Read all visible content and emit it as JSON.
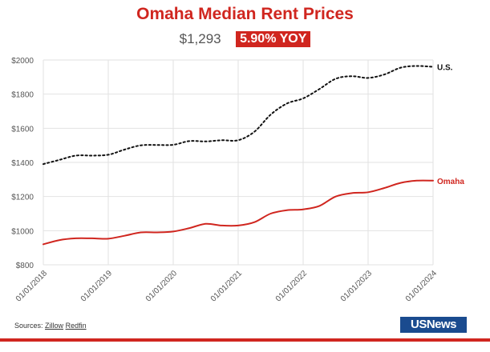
{
  "header": {
    "title": "Omaha Median Rent Prices",
    "current_value": "$1,293",
    "yoy_change": "5.90% YOY"
  },
  "footer": {
    "sources_label": "Sources:",
    "sources": [
      "Zillow",
      "Redfin"
    ],
    "logo_text": "USNews"
  },
  "colors": {
    "accent": "#d0261f",
    "us_line": "#111111",
    "omaha_line": "#d0261f",
    "grid": "#e2e2e2",
    "axis_text": "#555555",
    "logo_bg": "#1a4b8f"
  },
  "chart_data": {
    "type": "line",
    "title": "Omaha Median Rent Prices",
    "xlabel": "",
    "ylabel": "",
    "ylim": [
      800,
      2000
    ],
    "y_ticks": [
      800,
      1000,
      1200,
      1400,
      1600,
      1800,
      2000
    ],
    "y_tick_labels": [
      "$800",
      "$1000",
      "$1200",
      "$1400",
      "$1600",
      "$1800",
      "$2000"
    ],
    "x_range": [
      2018.0,
      2024.0
    ],
    "x_ticks": [
      2018,
      2019,
      2020,
      2021,
      2022,
      2023,
      2024
    ],
    "x_tick_labels": [
      "01/01/2018",
      "01/01/2019",
      "01/01/2020",
      "01/01/2021",
      "01/01/2022",
      "01/01/2023",
      "01/01/2024"
    ],
    "grid": true,
    "legend": "end-of-line labels",
    "series": [
      {
        "name": "U.S.",
        "style": "dotted",
        "color": "#111111",
        "x": [
          2018.0,
          2018.25,
          2018.5,
          2018.75,
          2019.0,
          2019.25,
          2019.5,
          2019.75,
          2020.0,
          2020.25,
          2020.5,
          2020.75,
          2021.0,
          2021.25,
          2021.5,
          2021.75,
          2022.0,
          2022.25,
          2022.5,
          2022.75,
          2023.0,
          2023.25,
          2023.5,
          2023.75,
          2024.0
        ],
        "values": [
          1390,
          1415,
          1440,
          1440,
          1445,
          1475,
          1500,
          1502,
          1503,
          1525,
          1523,
          1530,
          1530,
          1580,
          1680,
          1745,
          1775,
          1830,
          1890,
          1905,
          1895,
          1915,
          1955,
          1965,
          1960
        ]
      },
      {
        "name": "Omaha",
        "style": "solid",
        "color": "#d0261f",
        "x": [
          2018.0,
          2018.25,
          2018.5,
          2018.75,
          2019.0,
          2019.25,
          2019.5,
          2019.75,
          2020.0,
          2020.25,
          2020.5,
          2020.75,
          2021.0,
          2021.25,
          2021.5,
          2021.75,
          2022.0,
          2022.25,
          2022.5,
          2022.75,
          2023.0,
          2023.25,
          2023.5,
          2023.75,
          2024.0
        ],
        "values": [
          920,
          945,
          955,
          955,
          953,
          970,
          990,
          990,
          995,
          1015,
          1040,
          1030,
          1030,
          1050,
          1100,
          1120,
          1125,
          1145,
          1200,
          1220,
          1225,
          1250,
          1280,
          1293,
          1293
        ]
      }
    ]
  }
}
